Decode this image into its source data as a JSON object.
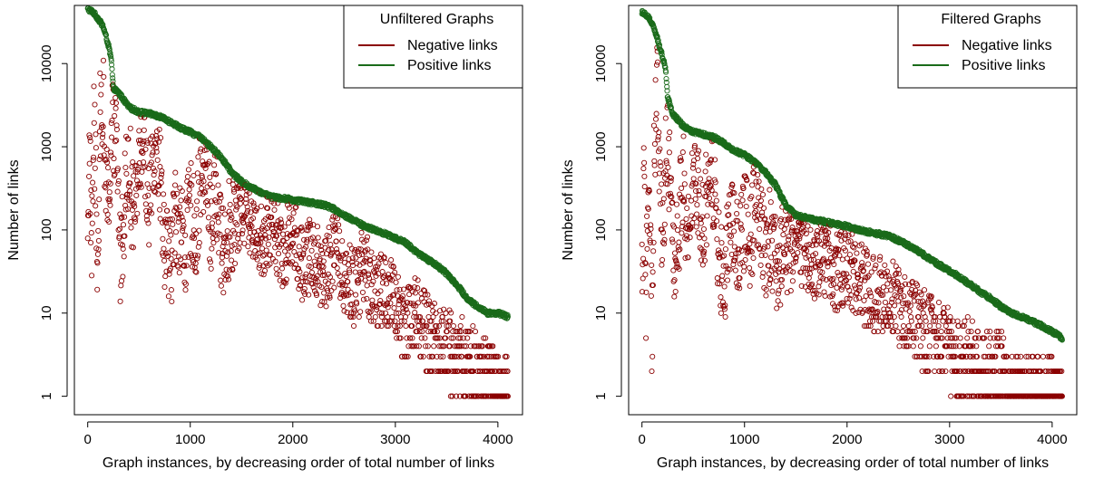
{
  "chart_data": [
    {
      "type": "scatter",
      "legend_title": "Unfiltered Graphs",
      "xlabel": "Graph instances, by decreasing order of total number of links",
      "ylabel": "Number of links",
      "xlim": [
        -130,
        4240
      ],
      "ylim": [
        0.6,
        50000
      ],
      "y_scale": "log",
      "x_ticks": [
        0,
        1000,
        2000,
        3000,
        4000
      ],
      "y_ticks": [
        1,
        10,
        100,
        1000,
        10000
      ],
      "grid": false,
      "legend_position": "top-right",
      "series": [
        {
          "name": "Negative links",
          "color": "#8b0000",
          "approx_points": [
            [
              0,
              180
            ],
            [
              20,
              900
            ],
            [
              40,
              60
            ],
            [
              60,
              1800
            ],
            [
              80,
              300
            ],
            [
              100,
              20
            ],
            [
              120,
              2000
            ],
            [
              150,
              6000
            ],
            [
              160,
              800
            ],
            [
              200,
              150
            ],
            [
              240,
              2500
            ],
            [
              280,
              1200
            ],
            [
              320,
              40
            ],
            [
              360,
              250
            ],
            [
              400,
              900
            ],
            [
              450,
              100
            ],
            [
              500,
              1500
            ],
            [
              550,
              700
            ],
            [
              600,
              200
            ],
            [
              650,
              1200
            ],
            [
              700,
              600
            ],
            [
              750,
              80
            ],
            [
              800,
              30
            ],
            [
              850,
              150
            ],
            [
              900,
              120
            ],
            [
              950,
              60
            ],
            [
              1000,
              200
            ],
            [
              1050,
              80
            ],
            [
              1100,
              400
            ],
            [
              1150,
              600
            ],
            [
              1200,
              100
            ],
            [
              1250,
              300
            ],
            [
              1300,
              60
            ],
            [
              1400,
              120
            ],
            [
              1500,
              200
            ],
            [
              1600,
              150
            ],
            [
              1700,
              80
            ],
            [
              1800,
              120
            ],
            [
              1900,
              60
            ],
            [
              2000,
              80
            ],
            [
              2100,
              40
            ],
            [
              2200,
              50
            ],
            [
              2300,
              30
            ],
            [
              2400,
              60
            ],
            [
              2500,
              30
            ],
            [
              2600,
              20
            ],
            [
              2700,
              40
            ],
            [
              2800,
              15
            ],
            [
              2900,
              20
            ],
            [
              3000,
              12
            ],
            [
              3100,
              8
            ],
            [
              3200,
              10
            ],
            [
              3300,
              6
            ],
            [
              3400,
              5
            ],
            [
              3500,
              4
            ],
            [
              3600,
              3
            ],
            [
              3700,
              3
            ],
            [
              3800,
              2
            ],
            [
              3900,
              2
            ],
            [
              4000,
              1
            ],
            [
              4100,
              1
            ]
          ]
        },
        {
          "name": "Positive links",
          "color": "#1a6b1a",
          "approx_points": [
            [
              0,
              45000
            ],
            [
              50,
              42000
            ],
            [
              100,
              35000
            ],
            [
              150,
              28000
            ],
            [
              200,
              17000
            ],
            [
              230,
              11000
            ],
            [
              250,
              5000
            ],
            [
              300,
              4500
            ],
            [
              400,
              3000
            ],
            [
              500,
              2600
            ],
            [
              600,
              2500
            ],
            [
              700,
              2300
            ],
            [
              800,
              2000
            ],
            [
              900,
              1700
            ],
            [
              1000,
              1500
            ],
            [
              1100,
              1300
            ],
            [
              1200,
              1000
            ],
            [
              1300,
              750
            ],
            [
              1400,
              500
            ],
            [
              1500,
              380
            ],
            [
              1600,
              320
            ],
            [
              1700,
              280
            ],
            [
              1800,
              250
            ],
            [
              1900,
              240
            ],
            [
              2000,
              230
            ],
            [
              2100,
              220
            ],
            [
              2200,
              210
            ],
            [
              2300,
              200
            ],
            [
              2400,
              180
            ],
            [
              2500,
              150
            ],
            [
              2600,
              130
            ],
            [
              2700,
              110
            ],
            [
              2800,
              100
            ],
            [
              2900,
              90
            ],
            [
              3000,
              80
            ],
            [
              3100,
              70
            ],
            [
              3200,
              55
            ],
            [
              3300,
              45
            ],
            [
              3400,
              38
            ],
            [
              3500,
              30
            ],
            [
              3600,
              22
            ],
            [
              3700,
              15
            ],
            [
              3800,
              12
            ],
            [
              3900,
              10
            ],
            [
              4000,
              10
            ],
            [
              4100,
              9
            ]
          ]
        }
      ]
    },
    {
      "type": "scatter",
      "legend_title": "Filtered Graphs",
      "xlabel": "Graph instances, by decreasing order of total number of links",
      "ylabel": "Number of links",
      "xlim": [
        -130,
        4240
      ],
      "ylim": [
        0.6,
        50000
      ],
      "y_scale": "log",
      "x_ticks": [
        0,
        1000,
        2000,
        3000,
        4000
      ],
      "y_ticks": [
        1,
        10,
        100,
        1000,
        10000
      ],
      "grid": false,
      "legend_position": "top-right",
      "series": [
        {
          "name": "Negative links",
          "color": "#8b0000",
          "approx_points": [
            [
              0,
              40
            ],
            [
              20,
              300
            ],
            [
              40,
              10
            ],
            [
              60,
              800
            ],
            [
              80,
              100
            ],
            [
              100,
              5
            ],
            [
              120,
              1000
            ],
            [
              150,
              5500
            ],
            [
              180,
              400
            ],
            [
              200,
              60
            ],
            [
              240,
              1200
            ],
            [
              280,
              500
            ],
            [
              320,
              30
            ],
            [
              360,
              120
            ],
            [
              400,
              400
            ],
            [
              450,
              60
            ],
            [
              500,
              600
            ],
            [
              550,
              300
            ],
            [
              600,
              100
            ],
            [
              650,
              500
            ],
            [
              700,
              300
            ],
            [
              750,
              60
            ],
            [
              800,
              20
            ],
            [
              850,
              100
            ],
            [
              900,
              80
            ],
            [
              950,
              40
            ],
            [
              1000,
              150
            ],
            [
              1050,
              60
            ],
            [
              1100,
              200
            ],
            [
              1150,
              100
            ],
            [
              1200,
              50
            ],
            [
              1250,
              80
            ],
            [
              1300,
              40
            ],
            [
              1400,
              60
            ],
            [
              1500,
              80
            ],
            [
              1600,
              50
            ],
            [
              1700,
              40
            ],
            [
              1800,
              50
            ],
            [
              1900,
              30
            ],
            [
              2000,
              40
            ],
            [
              2100,
              25
            ],
            [
              2200,
              20
            ],
            [
              2300,
              15
            ],
            [
              2400,
              20
            ],
            [
              2500,
              12
            ],
            [
              2600,
              10
            ],
            [
              2700,
              8
            ],
            [
              2800,
              6
            ],
            [
              2900,
              5
            ],
            [
              3000,
              4
            ],
            [
              3100,
              3
            ],
            [
              3200,
              3
            ],
            [
              3300,
              2
            ],
            [
              3400,
              2
            ],
            [
              3500,
              2
            ],
            [
              3600,
              1
            ],
            [
              3700,
              1
            ],
            [
              3800,
              1
            ],
            [
              3900,
              1
            ],
            [
              4000,
              1
            ],
            [
              4100,
              1
            ]
          ]
        },
        {
          "name": "Positive links",
          "color": "#1a6b1a",
          "approx_points": [
            [
              0,
              42000
            ],
            [
              50,
              38000
            ],
            [
              100,
              30000
            ],
            [
              150,
              20000
            ],
            [
              200,
              12000
            ],
            [
              230,
              9000
            ],
            [
              250,
              4000
            ],
            [
              300,
              2500
            ],
            [
              400,
              1800
            ],
            [
              500,
              1500
            ],
            [
              600,
              1400
            ],
            [
              700,
              1300
            ],
            [
              800,
              1100
            ],
            [
              900,
              900
            ],
            [
              1000,
              800
            ],
            [
              1100,
              650
            ],
            [
              1200,
              500
            ],
            [
              1300,
              350
            ],
            [
              1400,
              200
            ],
            [
              1500,
              150
            ],
            [
              1600,
              140
            ],
            [
              1700,
              130
            ],
            [
              1800,
              125
            ],
            [
              1900,
              118
            ],
            [
              2000,
              110
            ],
            [
              2100,
              100
            ],
            [
              2200,
              95
            ],
            [
              2300,
              90
            ],
            [
              2400,
              85
            ],
            [
              2500,
              75
            ],
            [
              2600,
              65
            ],
            [
              2700,
              55
            ],
            [
              2800,
              45
            ],
            [
              2900,
              38
            ],
            [
              3000,
              32
            ],
            [
              3100,
              27
            ],
            [
              3200,
              22
            ],
            [
              3300,
              18
            ],
            [
              3400,
              15
            ],
            [
              3500,
              12
            ],
            [
              3600,
              10
            ],
            [
              3700,
              9
            ],
            [
              3800,
              8
            ],
            [
              3900,
              7
            ],
            [
              4000,
              6
            ],
            [
              4100,
              5
            ]
          ]
        }
      ]
    }
  ]
}
